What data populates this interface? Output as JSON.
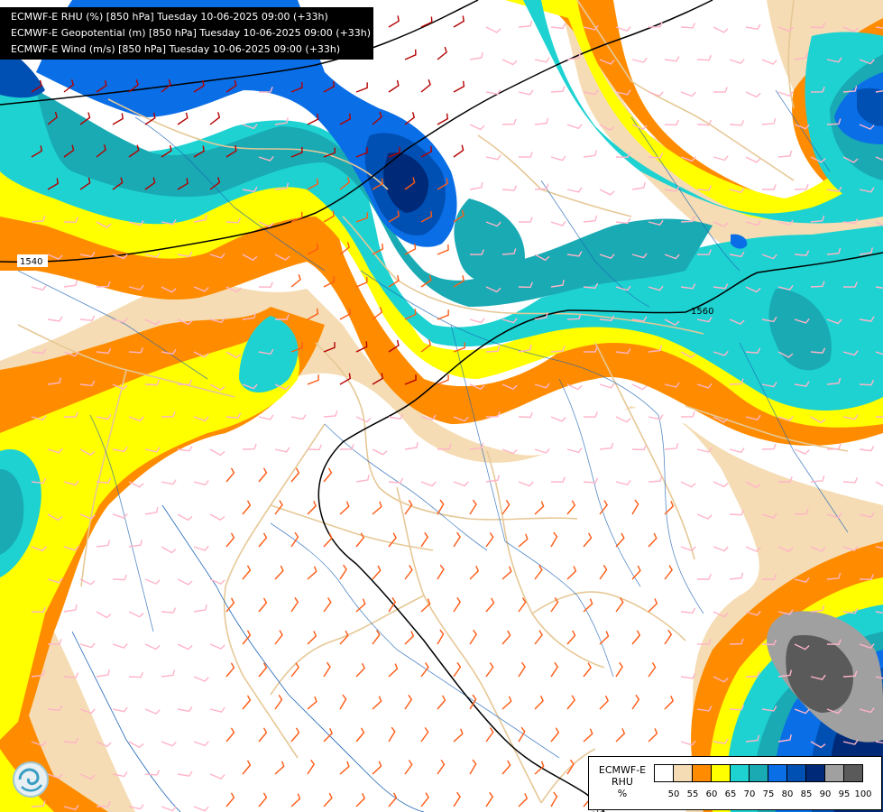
{
  "header": {
    "lines": [
      "ECMWF-E RHU (%) [850 hPa] Tuesday 10-06-2025 09:00 (+33h)",
      "ECMWF-E Geopotential (m) [850 hPa] Tuesday 10-06-2025 09:00 (+33h)",
      "ECMWF-E Wind (m/s) [850 hPa] Tuesday 10-06-2025 09:00 (+33h)"
    ]
  },
  "contours": {
    "labels": [
      "1540",
      "1560",
      "1560"
    ]
  },
  "legend": {
    "model": "ECMWF-E",
    "variable": "RHU",
    "unit": "%",
    "bins": [
      {
        "label": "50",
        "color": "#ffffff"
      },
      {
        "label": "55",
        "color": "#f5dcb4"
      },
      {
        "label": "60",
        "color": "#ff8c00"
      },
      {
        "label": "65",
        "color": "#ffff00"
      },
      {
        "label": "70",
        "color": "#1ed2d2"
      },
      {
        "label": "75",
        "color": "#19aab4"
      },
      {
        "label": "80",
        "color": "#0a6ee6"
      },
      {
        "label": "85",
        "color": "#0050b4"
      },
      {
        "label": "90",
        "color": "#002a78"
      },
      {
        "label": "95",
        "color": "#a0a0a0"
      },
      {
        "label": "100",
        "color": "#5a5a5a"
      }
    ]
  },
  "colors": {
    "barb_low": "#ffb4c8",
    "barb_mid": "#ff5a14",
    "barb_high": "#b40000",
    "border": "#e6c896",
    "river": "#1e64b4",
    "contour": "#000000"
  }
}
